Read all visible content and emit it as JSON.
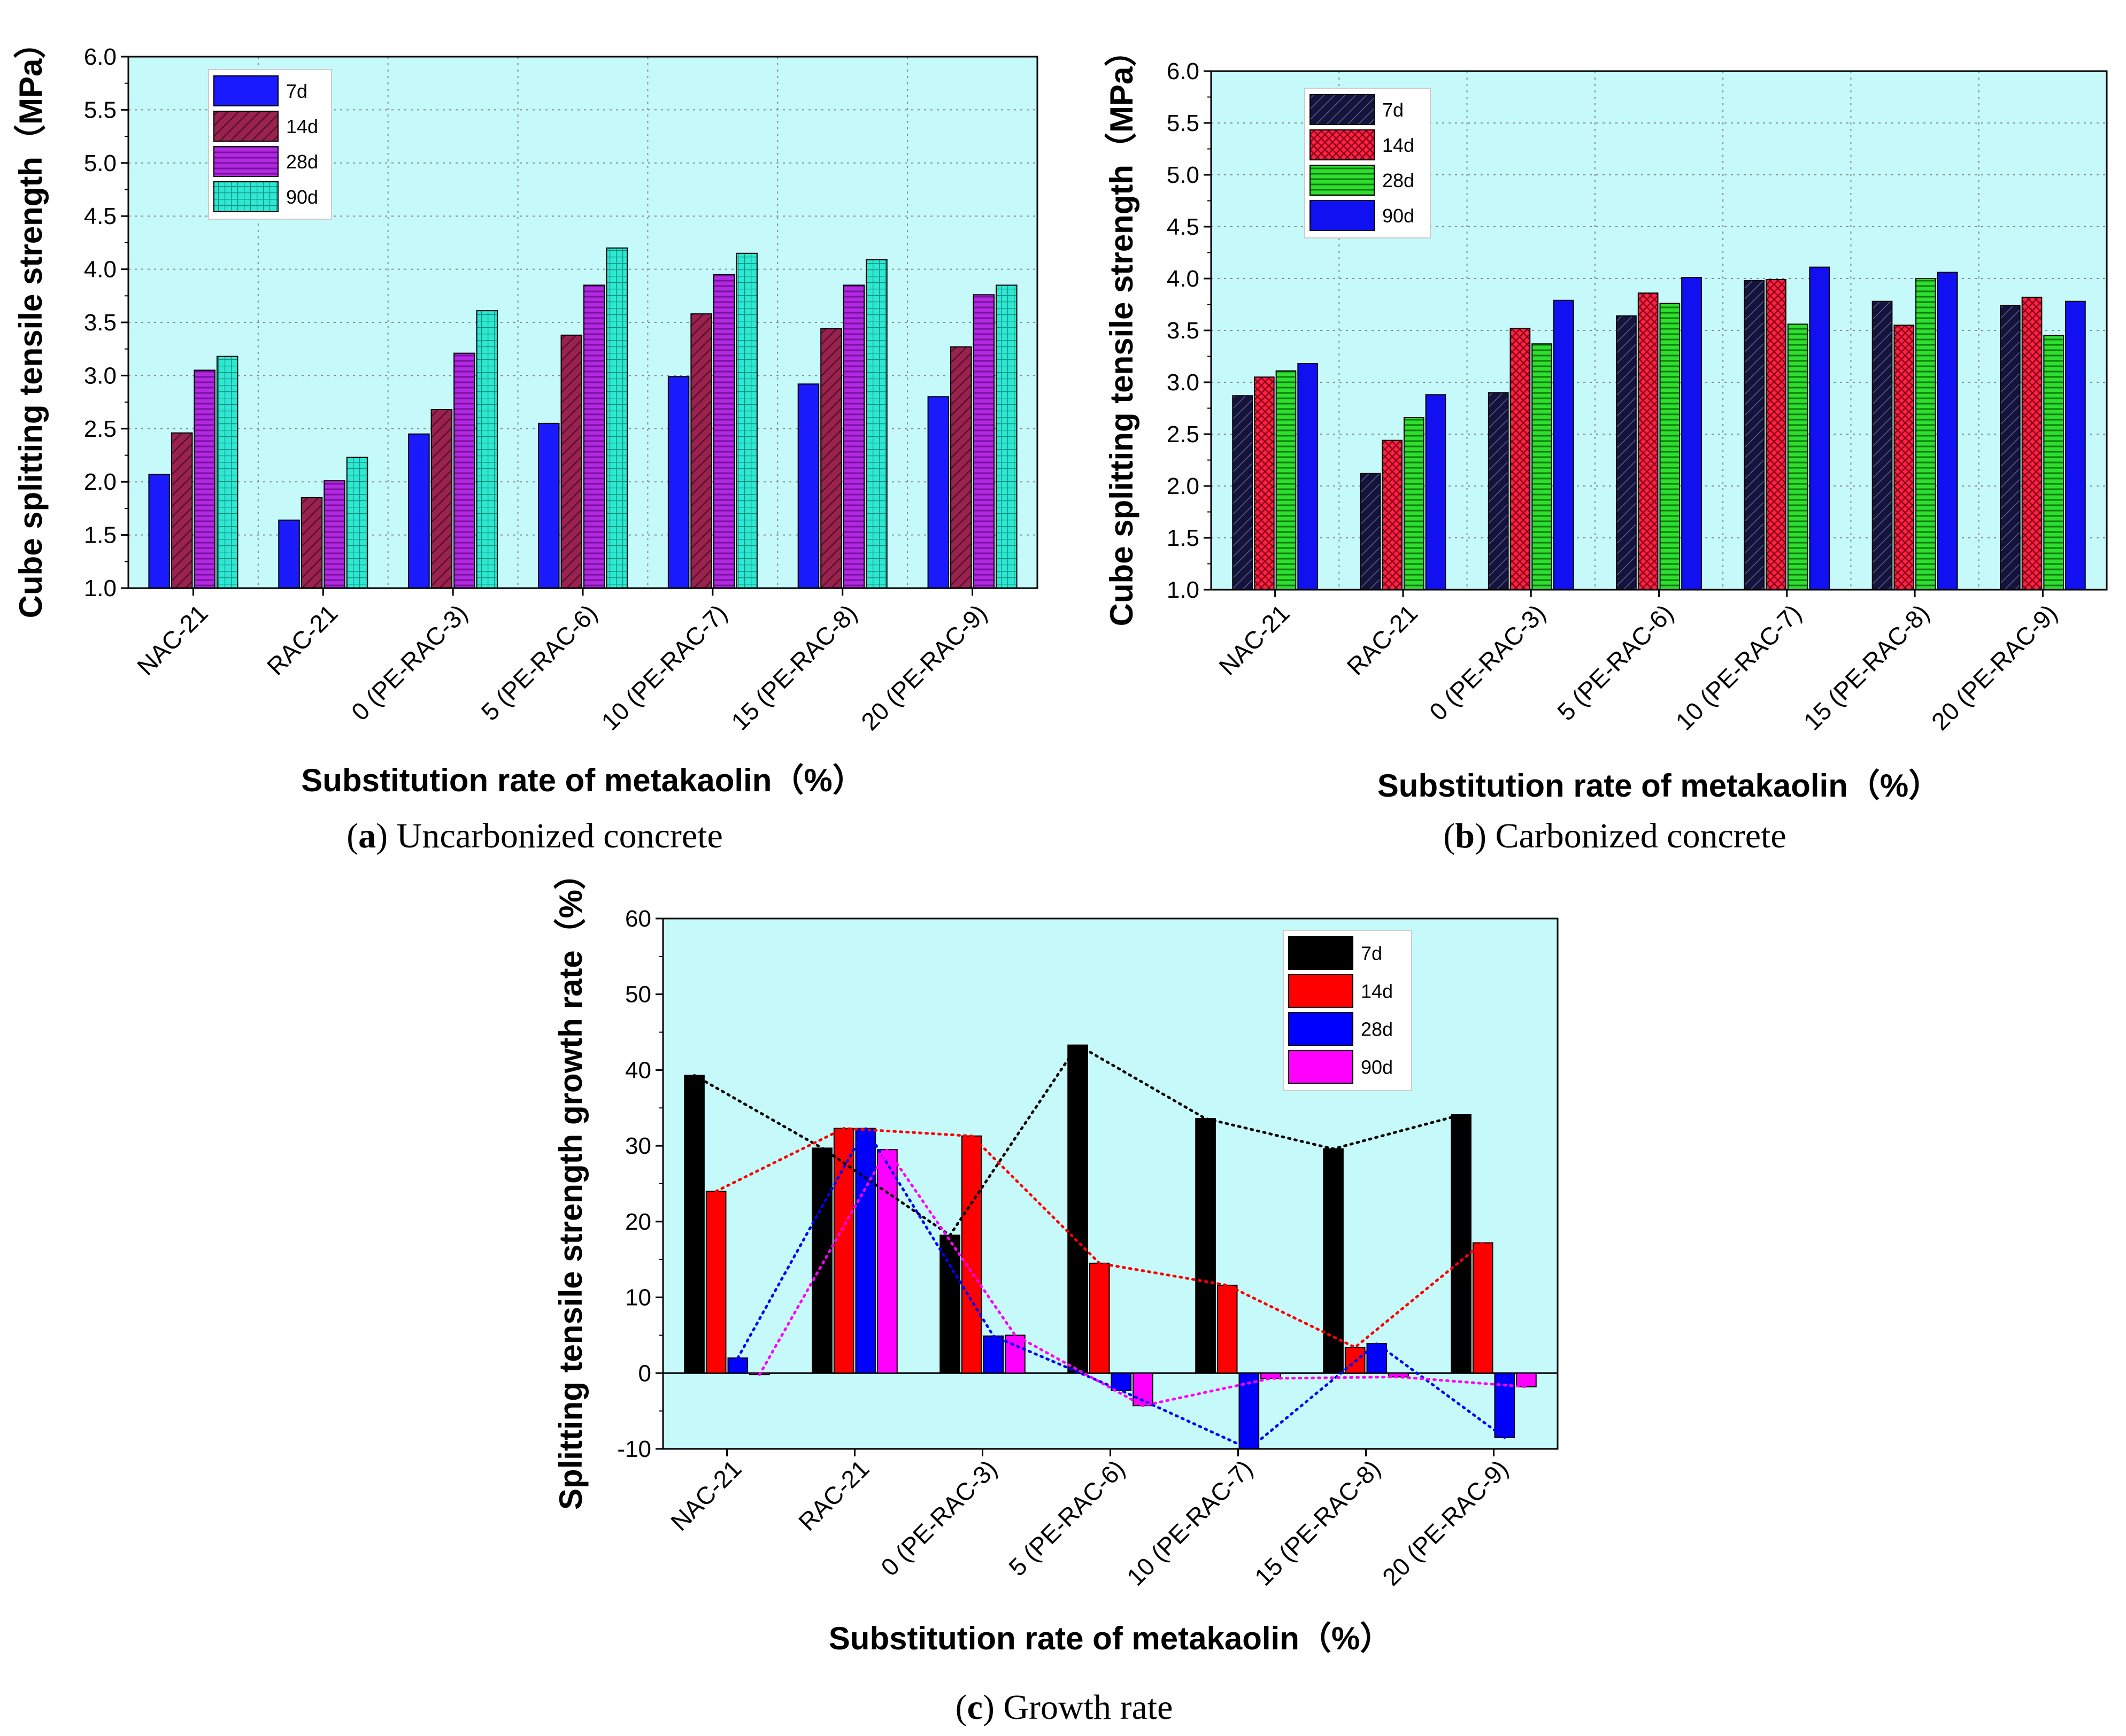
{
  "figure_captions": [
    {
      "letter": "a",
      "text": "Uncarbonized concrete"
    },
    {
      "letter": "b",
      "text": "Carbonized concrete"
    },
    {
      "letter": "c",
      "text": "Growth rate"
    }
  ],
  "chart_data": [
    {
      "id": "a",
      "type": "bar",
      "categories": [
        "NAC-21",
        "RAC-21",
        "0 (PE-RAC-3)",
        "5 (PE-RAC-6)",
        "10 (PE-RAC-7)",
        "15 (PE-RAC-8)",
        "20 (PE-RAC-9)"
      ],
      "series": [
        {
          "name": "7d",
          "values": [
            2.07,
            1.64,
            2.45,
            2.55,
            2.99,
            2.92,
            2.8
          ],
          "color": "#1a1aff",
          "pattern": "solid"
        },
        {
          "name": "14d",
          "values": [
            2.46,
            1.85,
            2.68,
            3.38,
            3.58,
            3.44,
            3.27
          ],
          "color": "#99224f",
          "pattern": "hatch-diagonal"
        },
        {
          "name": "28d",
          "values": [
            3.05,
            2.01,
            3.21,
            3.85,
            3.95,
            3.85,
            3.76
          ],
          "color": "#b129e0",
          "pattern": "hatch-horizontal"
        },
        {
          "name": "90d",
          "values": [
            3.18,
            2.23,
            3.61,
            4.2,
            4.15,
            4.09,
            3.85
          ],
          "color": "#2ee8d2",
          "pattern": "grid"
        }
      ],
      "title": "",
      "xlabel": "Substitution rate of metakaolin（%）",
      "ylabel": "Cube splitting tensile strength（MPa）",
      "ylim": [
        1.0,
        6.0
      ],
      "yticks": [
        "1.0",
        "1.5",
        "2.0",
        "2.5",
        "3.0",
        "3.5",
        "4.0",
        "4.5",
        "5.0",
        "5.5",
        "6.0"
      ],
      "grid": true,
      "legend": "top-left",
      "background": "#c6fafa"
    },
    {
      "id": "b",
      "type": "bar",
      "categories": [
        "NAC-21",
        "RAC-21",
        "0 (PE-RAC-3)",
        "5 (PE-RAC-6)",
        "10 (PE-RAC-7)",
        "15 (PE-RAC-8)",
        "20 (PE-RAC-9)"
      ],
      "series": [
        {
          "name": "7d",
          "values": [
            2.87,
            2.12,
            2.9,
            3.64,
            3.98,
            3.78,
            3.74
          ],
          "color": "#14143a",
          "pattern": "hatch-diagonal-light"
        },
        {
          "name": "14d",
          "values": [
            3.05,
            2.44,
            3.52,
            3.86,
            3.99,
            3.55,
            3.82
          ],
          "color": "#ff2244",
          "pattern": "crosshatch"
        },
        {
          "name": "28d",
          "values": [
            3.11,
            2.66,
            3.37,
            3.76,
            3.56,
            4.0,
            3.45
          ],
          "color": "#2ee02e",
          "pattern": "hatch-horizontal"
        },
        {
          "name": "90d",
          "values": [
            3.18,
            2.88,
            3.79,
            4.01,
            4.11,
            4.06,
            3.78
          ],
          "color": "#1010f0",
          "pattern": "solid"
        }
      ],
      "title": "",
      "xlabel": "Substitution rate of metakaolin（%）",
      "ylabel": "Cube splitting tensile strength（MPa）",
      "ylim": [
        1.0,
        6.0
      ],
      "yticks": [
        "1.0",
        "1.5",
        "2.0",
        "2.5",
        "3.0",
        "3.5",
        "4.0",
        "4.5",
        "5.0",
        "5.5",
        "6.0"
      ],
      "grid": true,
      "legend": "top-left",
      "background": "#c6fafa"
    },
    {
      "id": "c",
      "type": "bar",
      "categories": [
        "NAC-21",
        "RAC-21",
        "0 (PE-RAC-3)",
        "5 (PE-RAC-6)",
        "10 (PE-RAC-7)",
        "15 (PE-RAC-8)",
        "20 (PE-RAC-9)"
      ],
      "series": [
        {
          "name": "7d",
          "values": [
            39.3,
            29.7,
            18.2,
            43.3,
            33.6,
            29.6,
            34.1
          ],
          "color": "#000000",
          "pattern": "solid"
        },
        {
          "name": "14d",
          "values": [
            24.0,
            32.3,
            31.3,
            14.5,
            11.6,
            3.4,
            17.2
          ],
          "color": "#ff0000",
          "pattern": "solid"
        },
        {
          "name": "28d",
          "values": [
            2.0,
            32.3,
            4.9,
            -2.3,
            -10.0,
            3.9,
            -8.5
          ],
          "color": "#0000ff",
          "pattern": "solid"
        },
        {
          "name": "90d",
          "values": [
            -0.2,
            29.5,
            5.0,
            -4.3,
            -0.7,
            -0.5,
            -1.8
          ],
          "color": "#ff00ff",
          "pattern": "solid"
        }
      ],
      "connect_lines": "dotted",
      "title": "",
      "xlabel": "Substitution rate of metakaolin（%）",
      "ylabel": "Splitting tensile strength growth rate（%）",
      "ylim": [
        -10,
        60
      ],
      "yticks": [
        "-10",
        "0",
        "10",
        "20",
        "30",
        "40",
        "50",
        "60"
      ],
      "grid": false,
      "legend": "top-right",
      "background": "#c6fafa"
    }
  ]
}
